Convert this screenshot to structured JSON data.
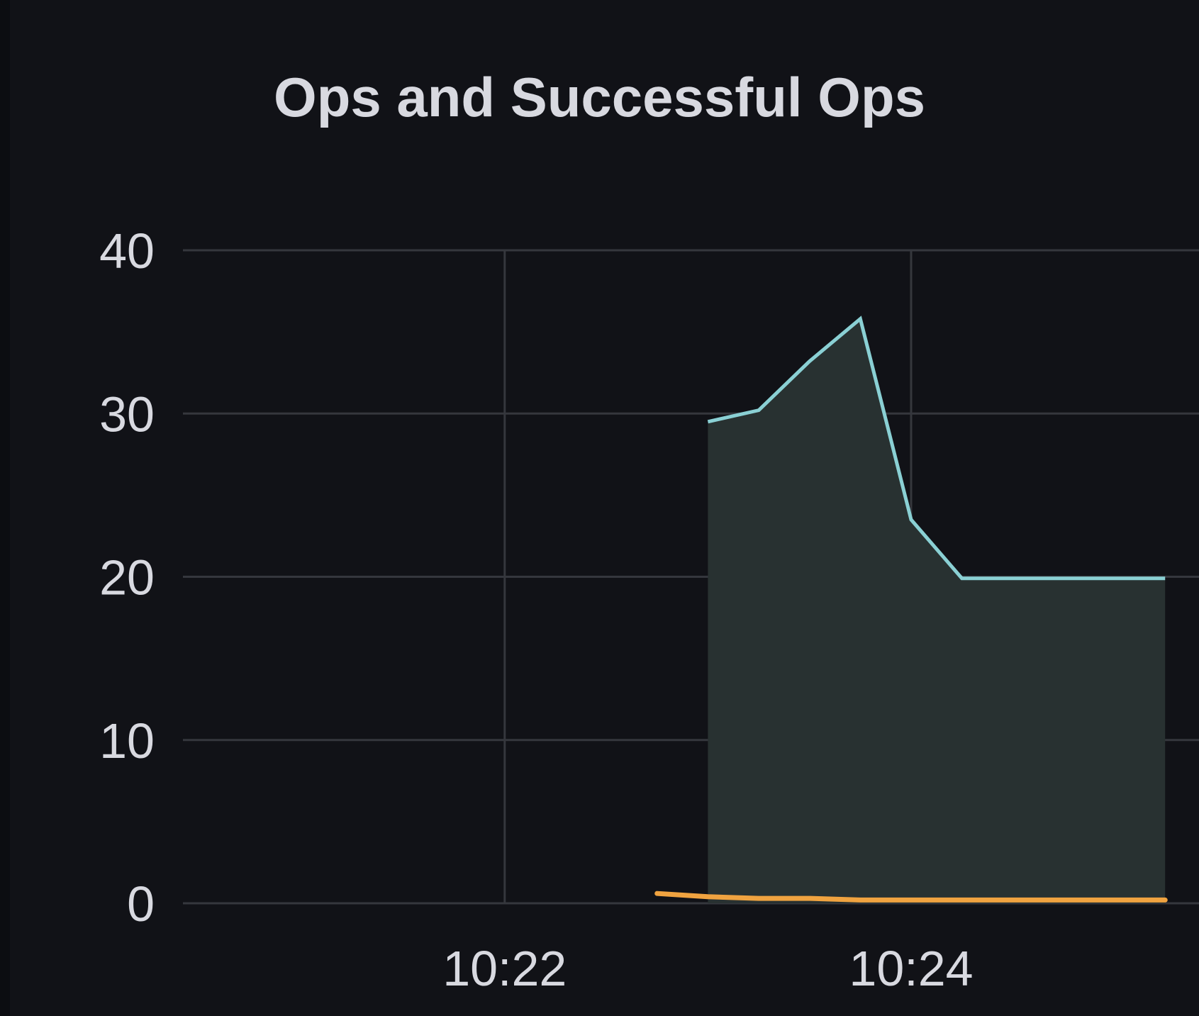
{
  "panel": {
    "title": "Ops and Successful Ops"
  },
  "colors": {
    "background": "#111217",
    "grid": "#35373d",
    "ops_line": "#8ad0d4",
    "ops_fill": "#283131",
    "successful_line": "#f0a340"
  },
  "chart_data": {
    "type": "area",
    "title": "Ops and Successful Ops",
    "xlabel": "",
    "ylabel": "",
    "grid": true,
    "legend": "none",
    "ylim": [
      0,
      40
    ],
    "y_ticks": [
      "0",
      "10",
      "20",
      "30",
      "40"
    ],
    "x_ticks": [
      "10:22",
      "10:24"
    ],
    "xlim": [
      "10:20:25",
      "10:25:25"
    ],
    "series": [
      {
        "x": [
          "10:23:00",
          "10:23:15",
          "10:23:30",
          "10:23:45",
          "10:24:00",
          "10:24:15",
          "10:25:15"
        ],
        "values": [
          29.5,
          30.2,
          33.2,
          35.8,
          23.5,
          19.9,
          19.9
        ]
      },
      {
        "x": [
          "10:22:45",
          "10:23:00",
          "10:23:15",
          "10:23:30",
          "10:23:45",
          "10:24:00",
          "10:24:15",
          "10:25:15"
        ],
        "values": [
          0.6,
          0.4,
          0.3,
          0.3,
          0.2,
          0.2,
          0.2,
          0.2
        ]
      }
    ]
  }
}
